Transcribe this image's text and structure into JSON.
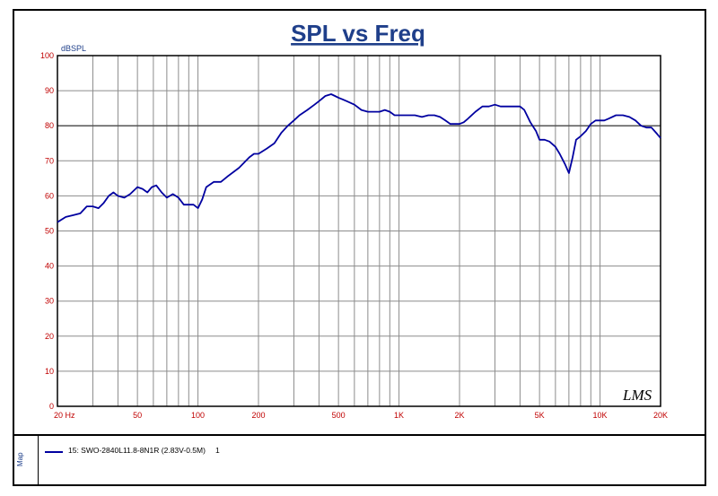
{
  "chart_data": {
    "type": "line",
    "title": "SPL vs Freq",
    "ylabel": "dBSPL",
    "xscale": "log",
    "xlim": [
      20,
      20000
    ],
    "ylim": [
      0,
      100
    ],
    "grid": true,
    "y_ticks": [
      0,
      10,
      20,
      30,
      40,
      50,
      60,
      70,
      80,
      90,
      100
    ],
    "x_ticks": [
      {
        "value": 20,
        "label": "20  Hz"
      },
      {
        "value": 50,
        "label": "50"
      },
      {
        "value": 100,
        "label": "100"
      },
      {
        "value": 200,
        "label": "200"
      },
      {
        "value": 500,
        "label": "500"
      },
      {
        "value": 1000,
        "label": "1K"
      },
      {
        "value": 2000,
        "label": "2K"
      },
      {
        "value": 5000,
        "label": "5K"
      },
      {
        "value": 10000,
        "label": "10K"
      },
      {
        "value": 20000,
        "label": "20K"
      }
    ],
    "series": [
      {
        "name": "15: SWO-2840L11.8-8N1R  (2.83V-0.5M)",
        "color": "#0000a0",
        "x": [
          20,
          22,
          24,
          26,
          28,
          30,
          32,
          34,
          36,
          38,
          40,
          43,
          46,
          50,
          53,
          56,
          59,
          62,
          66,
          70,
          75,
          80,
          85,
          90,
          95,
          100,
          105,
          110,
          120,
          130,
          140,
          160,
          180,
          190,
          200,
          220,
          240,
          260,
          280,
          300,
          320,
          350,
          380,
          400,
          430,
          460,
          480,
          500,
          550,
          600,
          650,
          700,
          750,
          800,
          850,
          900,
          950,
          1000,
          1100,
          1200,
          1300,
          1400,
          1500,
          1600,
          1700,
          1800,
          1900,
          2000,
          2100,
          2200,
          2400,
          2600,
          2800,
          3000,
          3200,
          3500,
          3800,
          4000,
          4200,
          4500,
          4800,
          5000,
          5300,
          5600,
          6000,
          6300,
          6700,
          7000,
          7300,
          7600,
          8000,
          8500,
          9000,
          9500,
          10000,
          10500,
          11000,
          12000,
          13000,
          14000,
          15000,
          16000,
          17000,
          18000,
          19000,
          20000
        ],
        "y": [
          52.5,
          54,
          54.5,
          55,
          57,
          57,
          56.5,
          58,
          60,
          61,
          60,
          59.5,
          60.5,
          62.5,
          62,
          61,
          62.5,
          63,
          61,
          59.5,
          60.5,
          59.5,
          57.5,
          57.5,
          57.5,
          56.5,
          59,
          62.5,
          64,
          64,
          65.5,
          68,
          71,
          72,
          72,
          73.5,
          75,
          78,
          80,
          81.5,
          83,
          84.5,
          86,
          87,
          88.5,
          89,
          88.5,
          88,
          87,
          86,
          84.5,
          84,
          84,
          84,
          84.5,
          84,
          83,
          83,
          83,
          83,
          82.5,
          83,
          83,
          82.5,
          81.5,
          80.5,
          80.5,
          80.5,
          81,
          82,
          84,
          85.5,
          85.5,
          86,
          85.5,
          85.5,
          85.5,
          85.5,
          84.5,
          81,
          78.5,
          76,
          76,
          75.5,
          74,
          72,
          69,
          66.5,
          71,
          76,
          77,
          78.5,
          80.5,
          81.5,
          81.5,
          81.5,
          82,
          83,
          83,
          82.5,
          81.5,
          80,
          79.5,
          79.5,
          78,
          76.5
        ]
      }
    ],
    "annotations": [
      "LMS"
    ]
  },
  "legend": {
    "map_label": "Map",
    "series_label": "15: SWO-2840L11.8-8N1R  (2.83V-0.5M)",
    "series_number": "1"
  }
}
